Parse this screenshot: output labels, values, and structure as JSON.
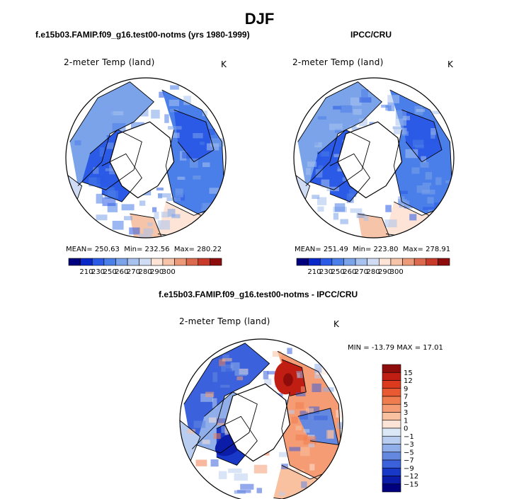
{
  "title": "DJF",
  "panels": {
    "left": {
      "heading": "f.e15b03.FAMIP.f09_g16.test00-notms (yrs 1980-1999)",
      "var_label": "2-meter Temp (land)",
      "units": "K",
      "stats": {
        "mean_label": "MEAN=",
        "mean": "250.63",
        "min_label": "Min=",
        "min": "232.56",
        "max_label": "Max=",
        "max": "280.22"
      }
    },
    "right": {
      "heading": "IPCC/CRU",
      "var_label": "2-meter Temp (land)",
      "units": "K",
      "stats": {
        "mean_label": "MEAN=",
        "mean": "251.49",
        "min_label": "Min=",
        "min": "223.80",
        "max_label": "Max=",
        "max": "278.91"
      }
    },
    "diff": {
      "heading": "f.e15b03.FAMIP.f09_g16.test00-notms - IPCC/CRU",
      "var_label": "2-meter Temp (land)",
      "units": "K",
      "minmax_text": "MIN = -13.79 MAX =  17.01"
    }
  },
  "chart_data": [
    {
      "type": "heatmap",
      "projection": "north-polar-stereographic",
      "title": "f.e15b03.FAMIP.f09_g16.test00-notms (yrs 1980-1999)",
      "variable": "2-meter Temp (land)",
      "units": "K",
      "mean": 250.63,
      "min": 232.56,
      "max": 280.22,
      "colorbar_levels": [
        210,
        230,
        250,
        260,
        270,
        280,
        290,
        300
      ],
      "colorbar_colors": [
        "#00007f",
        "#0a28c8",
        "#2a5ae6",
        "#4a7ee8",
        "#7ba3ea",
        "#a7c2ee",
        "#cfdcf4",
        "#fde4d6",
        "#f6c4a8",
        "#ec9a7a",
        "#dc6a4e",
        "#c83a2a",
        "#8f0c0c"
      ]
    },
    {
      "type": "heatmap",
      "projection": "north-polar-stereographic",
      "title": "IPCC/CRU",
      "variable": "2-meter Temp (land)",
      "units": "K",
      "mean": 251.49,
      "min": 223.8,
      "max": 278.91,
      "colorbar_levels": [
        210,
        230,
        250,
        260,
        270,
        280,
        290,
        300
      ],
      "colorbar_colors": [
        "#00007f",
        "#0a28c8",
        "#2a5ae6",
        "#4a7ee8",
        "#7ba3ea",
        "#a7c2ee",
        "#cfdcf4",
        "#fde4d6",
        "#f6c4a8",
        "#ec9a7a",
        "#dc6a4e",
        "#c83a2a",
        "#8f0c0c"
      ]
    },
    {
      "type": "heatmap",
      "projection": "north-polar-stereographic",
      "title": "f.e15b03.FAMIP.f09_g16.test00-notms - IPCC/CRU",
      "variable": "2-meter Temp (land)",
      "units": "K",
      "min": -13.79,
      "max": 17.01,
      "colorbar_levels": [
        15,
        12,
        9,
        7,
        5,
        3,
        1,
        0,
        -1,
        -3,
        -5,
        -7,
        -9,
        -12,
        -15
      ],
      "colorbar_colors": [
        "#8f0c0c",
        "#c01e12",
        "#dc3a1e",
        "#ea5a32",
        "#f07d50",
        "#f59c74",
        "#f9c1a0",
        "#fde4d6",
        "#dde8f6",
        "#b9cdf0",
        "#8faeea",
        "#6488e0",
        "#3b62dc",
        "#1838c8",
        "#0a1ca8",
        "#00007f"
      ]
    }
  ]
}
